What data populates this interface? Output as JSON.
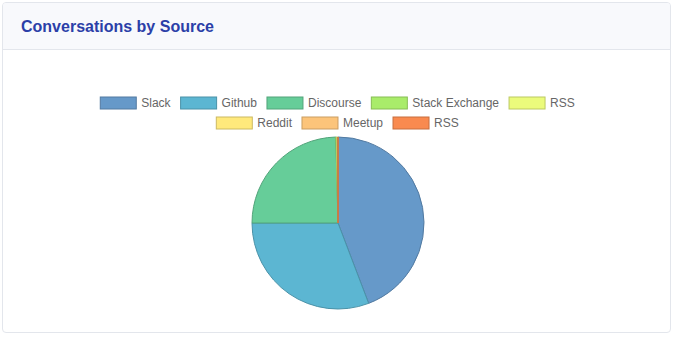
{
  "chart_data": {
    "type": "pie",
    "title": "Conversations by Source",
    "categories": [
      "Slack",
      "Github",
      "Discourse",
      "Stack Exchange",
      "RSS",
      "Reddit",
      "Meetup",
      "RSS"
    ],
    "values": [
      44.2,
      30.8,
      24.6,
      0.1,
      0.3,
      0,
      0,
      0
    ],
    "colors": [
      "#6699c9",
      "#5cb6d2",
      "#66cd99",
      "#a9ec6a",
      "#ebfb7c",
      "#ffe97c",
      "#fcc47a",
      "#f98a4f"
    ],
    "legend": "top"
  }
}
